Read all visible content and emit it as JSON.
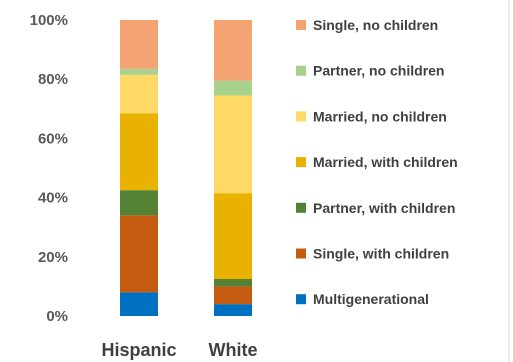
{
  "chart_data": {
    "type": "bar",
    "stacked": true,
    "categories": [
      "Hispanic",
      "White"
    ],
    "y_ticks": [
      "0%",
      "20%",
      "40%",
      "60%",
      "80%",
      "100%"
    ],
    "ylim": [
      0,
      100
    ],
    "grid": false,
    "legend_position": "right",
    "series": [
      {
        "name": "Multigenerational",
        "color": "#0070c0",
        "values": [
          8,
          4
        ]
      },
      {
        "name": "Single, with children",
        "color": "#c55a11",
        "values": [
          26,
          6
        ]
      },
      {
        "name": "Partner, with children",
        "color": "#548235",
        "values": [
          8.5,
          2.5
        ]
      },
      {
        "name": "Married, with children",
        "color": "#eab200",
        "values": [
          26,
          29
        ]
      },
      {
        "name": "Married, no children",
        "color": "#ffd966",
        "values": [
          13,
          33
        ]
      },
      {
        "name": "Partner, no children",
        "color": "#a9d18e",
        "values": [
          2,
          5
        ]
      },
      {
        "name": "Single, no children",
        "color": "#f4a373",
        "values": [
          16.5,
          20.5
        ]
      }
    ]
  }
}
